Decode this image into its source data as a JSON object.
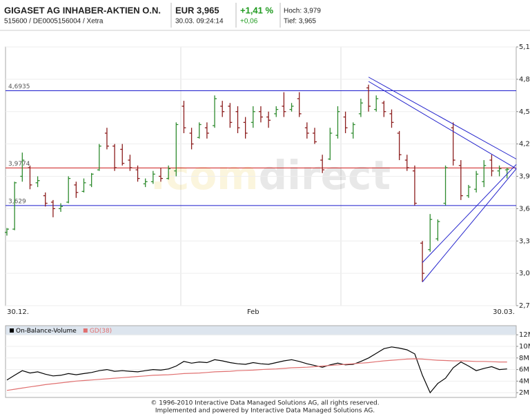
{
  "header": {
    "name": "GIGASET AG INHABER-AKTIEN O.N.",
    "ids": "515600 / DE0005156004 / Xetra",
    "price": "EUR 3,965",
    "time": "30.03. 09:24:14",
    "change_pct": "+1,41 %",
    "change": "+0,06",
    "high": "Hoch: 3,979",
    "low": "Tief: 3,965"
  },
  "chart_data": [
    {
      "type": "ohlc",
      "categories": [
        "30.12.",
        null,
        null,
        null,
        null,
        null,
        null,
        null,
        null,
        null,
        null,
        null,
        null,
        null,
        null,
        null,
        null,
        null,
        null,
        null,
        null,
        null,
        null,
        null,
        null,
        null,
        null,
        null,
        null,
        null,
        null,
        null,
        "Feb",
        null,
        null,
        null,
        null,
        null,
        null,
        null,
        null,
        null,
        null,
        null,
        null,
        null,
        null,
        null,
        null,
        null,
        null,
        null,
        null,
        null,
        null,
        null,
        null,
        null,
        null,
        null,
        null,
        null,
        null,
        null,
        null,
        "30.03."
      ],
      "open": [
        3.38,
        3.41,
        3.9,
        3.98,
        3.84,
        3.72,
        3.66,
        3.6,
        3.66,
        3.82,
        3.76,
        3.82,
        3.96,
        4.3,
        4.18,
        4.15,
        4.05,
        3.96,
        3.83,
        3.85,
        3.9,
        3.88,
        3.95,
        4.55,
        4.3,
        4.26,
        4.35,
        4.37,
        4.55,
        4.55,
        4.5,
        4.4,
        4.4,
        4.5,
        4.45,
        4.48,
        4.55,
        4.52,
        4.62,
        4.35,
        4.3,
        4.05,
        4.06,
        4.28,
        4.45,
        4.3,
        4.48,
        4.72,
        4.52,
        4.58,
        4.48,
        4.3,
        4.05,
        3.95,
        3.28,
        3.22,
        3.32,
        3.65,
        4.35,
        4.0,
        3.72,
        3.78,
        3.85,
        4.05,
        3.95,
        3.96
      ],
      "high": [
        3.42,
        3.85,
        4.12,
        4.0,
        3.9,
        3.75,
        3.68,
        3.65,
        3.9,
        3.85,
        3.88,
        3.93,
        4.2,
        4.35,
        4.2,
        4.2,
        4.1,
        4.0,
        3.88,
        3.95,
        3.98,
        4.0,
        4.4,
        4.6,
        4.35,
        4.4,
        4.4,
        4.65,
        4.6,
        4.58,
        4.55,
        4.45,
        4.55,
        4.55,
        4.5,
        4.55,
        4.68,
        4.58,
        4.68,
        4.4,
        4.35,
        4.1,
        4.35,
        4.55,
        4.5,
        4.4,
        4.62,
        4.75,
        4.65,
        4.6,
        4.52,
        4.32,
        4.1,
        4.0,
        3.3,
        3.55,
        3.5,
        4.0,
        4.4,
        4.05,
        3.82,
        3.95,
        4.05,
        4.1,
        4.0,
        3.98
      ],
      "low": [
        3.35,
        3.4,
        3.85,
        3.78,
        3.8,
        3.62,
        3.52,
        3.57,
        3.65,
        3.7,
        3.75,
        3.8,
        3.95,
        4.15,
        3.95,
        4.0,
        3.95,
        3.85,
        3.8,
        3.83,
        3.85,
        3.87,
        3.9,
        4.3,
        4.15,
        4.25,
        4.25,
        4.35,
        4.45,
        4.35,
        4.3,
        4.25,
        4.35,
        4.4,
        4.35,
        4.45,
        4.45,
        4.5,
        4.45,
        4.25,
        4.2,
        3.93,
        4.05,
        4.25,
        4.3,
        4.25,
        4.45,
        4.5,
        4.5,
        4.45,
        4.35,
        4.05,
        3.95,
        3.63,
        2.92,
        3.2,
        3.3,
        3.63,
        4.0,
        3.68,
        3.7,
        3.75,
        3.8,
        3.9,
        3.9,
        3.88
      ],
      "close": [
        3.41,
        3.84,
        4.05,
        3.82,
        3.86,
        3.65,
        3.6,
        3.62,
        3.88,
        3.75,
        3.84,
        3.92,
        4.18,
        4.18,
        3.98,
        4.02,
        3.98,
        3.88,
        3.85,
        3.92,
        3.88,
        3.97,
        4.38,
        4.35,
        4.2,
        4.38,
        4.3,
        4.62,
        4.5,
        4.4,
        4.35,
        4.3,
        4.5,
        4.45,
        4.42,
        4.52,
        4.5,
        4.55,
        4.48,
        4.3,
        4.22,
        3.96,
        4.3,
        4.5,
        4.35,
        4.38,
        4.58,
        4.55,
        4.62,
        4.5,
        4.4,
        4.1,
        3.98,
        3.65,
        3.0,
        3.5,
        3.48,
        3.98,
        4.05,
        3.72,
        3.8,
        3.92,
        4.0,
        3.95,
        3.97,
        3.965
      ],
      "up_color": "#2e8b2e",
      "down_color": "#8b1c1c",
      "ylim": [
        2.7,
        5.1
      ],
      "yticks": [
        {
          "value": 2.7,
          "label": "2,7"
        },
        {
          "value": 3.0,
          "label": "3,0"
        },
        {
          "value": 3.3,
          "label": "3,3"
        },
        {
          "value": 3.6,
          "label": "3,6"
        },
        {
          "value": 3.9,
          "label": "3,9"
        },
        {
          "value": 4.2,
          "label": "4,2"
        },
        {
          "value": 4.5,
          "label": "4,5"
        },
        {
          "value": 4.8,
          "label": "4,8"
        },
        {
          "value": 5.1,
          "label": "5,1"
        }
      ],
      "grid": true,
      "hlines": [
        {
          "value": 4.6935,
          "label": "4,6935",
          "color": "#1a1acc"
        },
        {
          "value": 3.9774,
          "label": "3,9774",
          "color": "#cc1a1a"
        },
        {
          "value": 3.629,
          "label": "3,629",
          "color": "#1a1acc"
        }
      ],
      "trendlines": [
        {
          "from": [
            47,
            4.82
          ],
          "to": [
            66.2,
            4.06
          ],
          "color": "#2222cc"
        },
        {
          "from": [
            47,
            4.78
          ],
          "to": [
            66.2,
            3.97
          ],
          "color": "#2222cc"
        },
        {
          "from": [
            54,
            3.1
          ],
          "to": [
            66.2,
            4.01
          ],
          "color": "#2222cc"
        },
        {
          "from": [
            54,
            2.92
          ],
          "to": [
            66.2,
            3.97
          ],
          "color": "#2222cc"
        }
      ],
      "watermark": [
        ".com",
        "direct"
      ]
    },
    {
      "type": "line",
      "series": [
        {
          "name": "On-Balance-Volume",
          "color": "#000000",
          "values": [
            4.2,
            5.0,
            5.8,
            5.4,
            5.6,
            5.2,
            4.9,
            5.0,
            5.3,
            5.1,
            5.3,
            5.5,
            5.8,
            6.0,
            5.7,
            5.8,
            5.7,
            5.6,
            5.8,
            6.0,
            5.9,
            6.1,
            6.6,
            7.4,
            7.1,
            7.3,
            7.2,
            7.7,
            7.5,
            7.2,
            7.0,
            6.9,
            7.2,
            7.0,
            6.9,
            7.2,
            7.5,
            7.7,
            7.4,
            7.0,
            6.7,
            6.4,
            6.8,
            7.1,
            6.8,
            6.9,
            7.4,
            8.0,
            8.8,
            9.6,
            9.9,
            9.7,
            9.4,
            8.7,
            5.0,
            2.0,
            3.6,
            4.5,
            6.3,
            7.3,
            6.6,
            5.8,
            6.2,
            6.5,
            6.0,
            6.1
          ]
        },
        {
          "name": "GD(38)",
          "color": "#e07070",
          "values": [
            2.4,
            2.6,
            2.8,
            3.0,
            3.2,
            3.4,
            3.55,
            3.7,
            3.85,
            4.0,
            4.1,
            4.2,
            4.3,
            4.4,
            4.5,
            4.6,
            4.7,
            4.8,
            4.9,
            5.0,
            5.05,
            5.1,
            5.2,
            5.3,
            5.35,
            5.4,
            5.5,
            5.6,
            5.65,
            5.7,
            5.8,
            5.85,
            5.9,
            6.0,
            6.05,
            6.1,
            6.2,
            6.3,
            6.35,
            6.4,
            6.5,
            6.6,
            6.7,
            6.8,
            6.9,
            7.0,
            7.1,
            7.2,
            7.35,
            7.5,
            7.6,
            7.7,
            7.8,
            7.85,
            7.8,
            7.7,
            7.6,
            7.55,
            7.5,
            7.5,
            7.45,
            7.4,
            7.4,
            7.35,
            7.3,
            7.3
          ]
        }
      ],
      "ylim": [
        1.3,
        12.5
      ],
      "yticks": [
        {
          "value": 2,
          "label": "2M"
        },
        {
          "value": 4,
          "label": "4M"
        },
        {
          "value": 6,
          "label": "6M"
        },
        {
          "value": 8,
          "label": "8M"
        },
        {
          "value": 10,
          "label": "10M"
        },
        {
          "value": 12,
          "label": "12M"
        }
      ],
      "grid": true
    }
  ],
  "footer": [
    "© 1996-2010 Interactive Data Managed Solutions AG, all rights reserved.",
    "Implemented and powered by Interactive Data Managed Solutions AG."
  ]
}
